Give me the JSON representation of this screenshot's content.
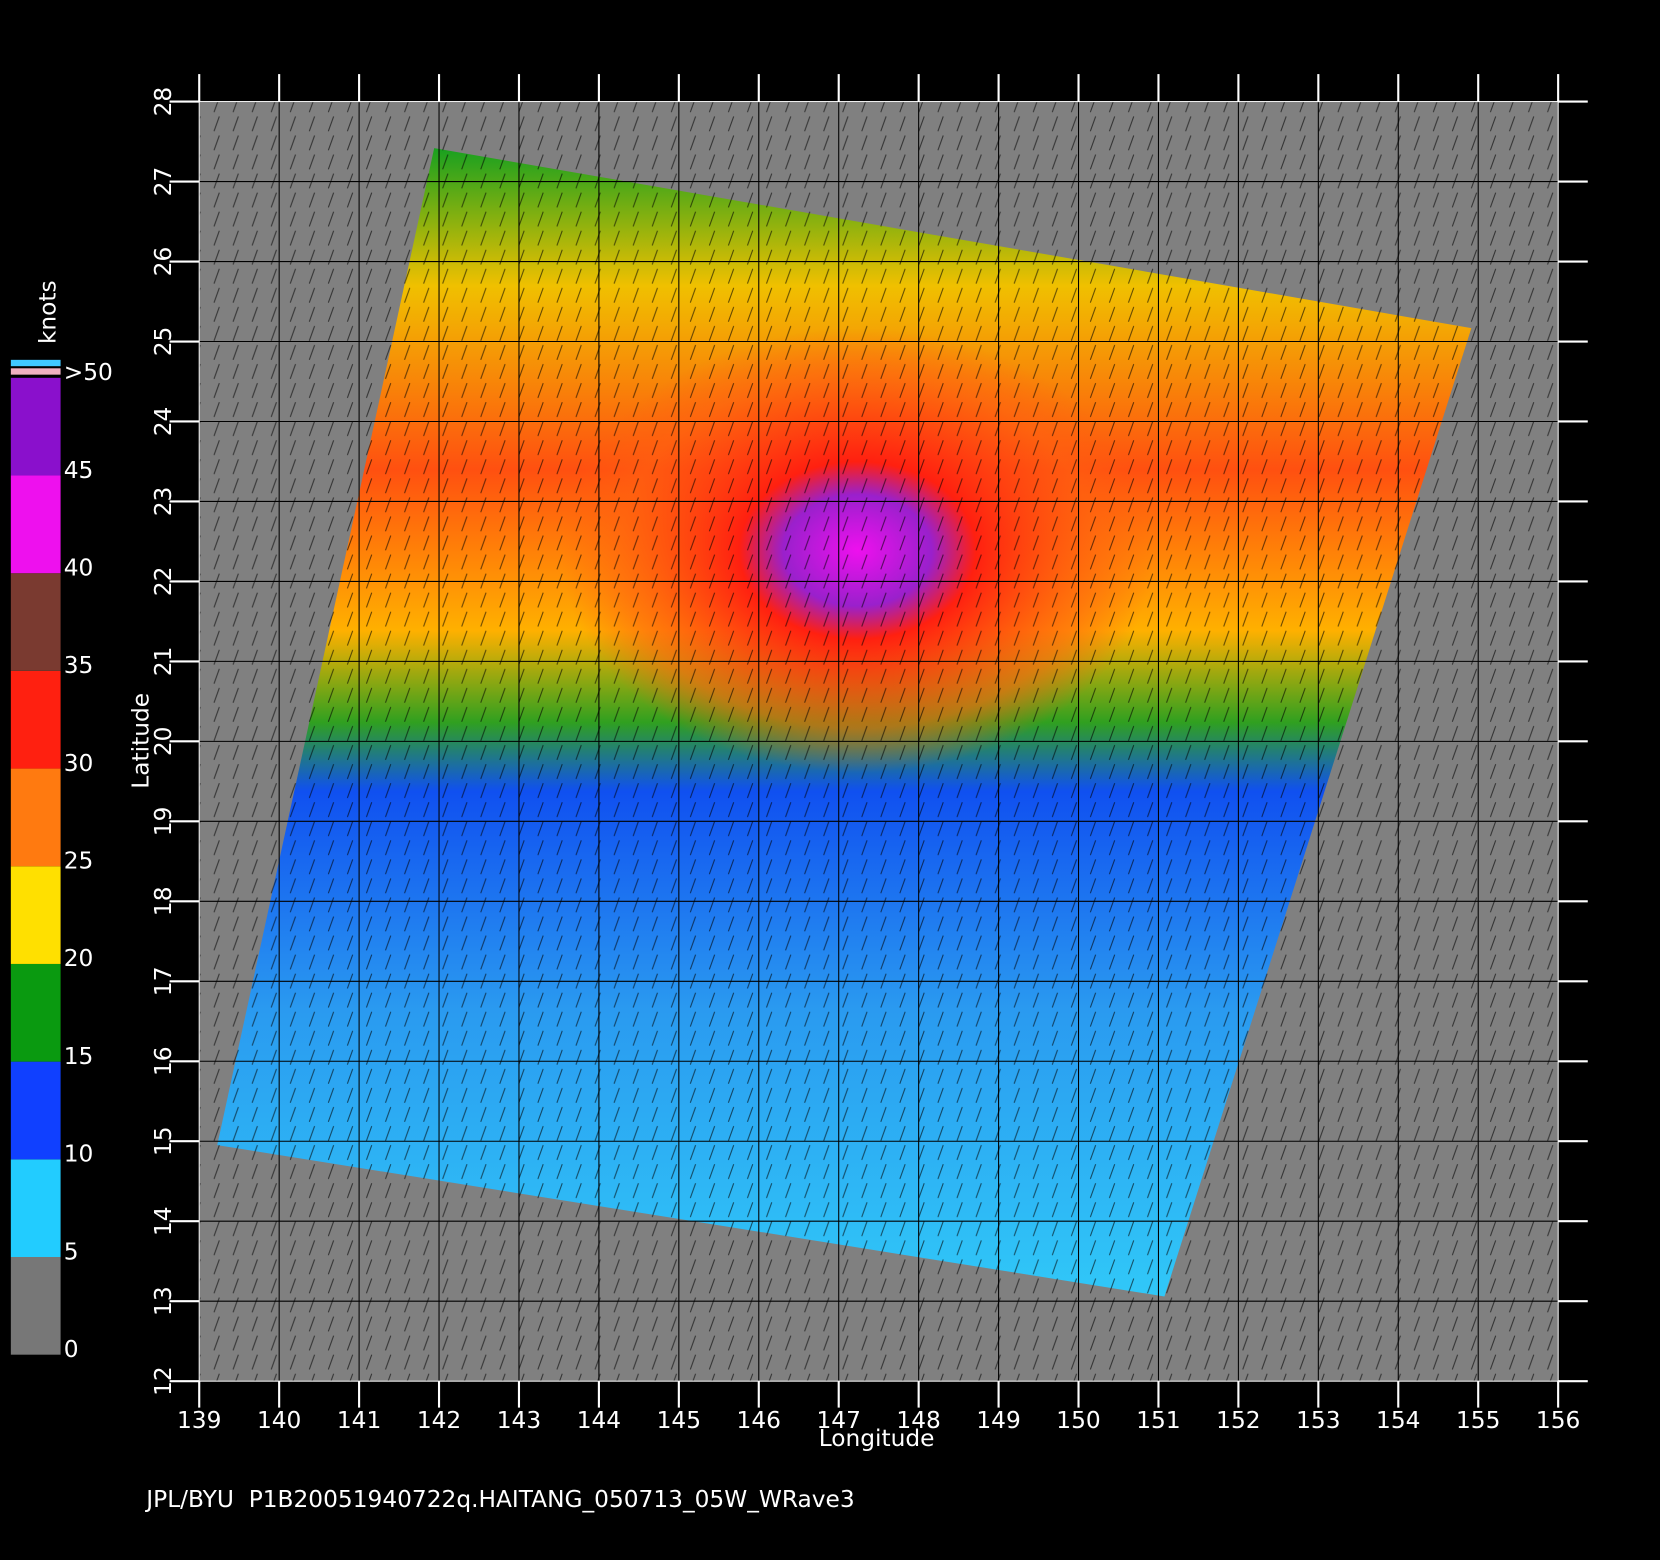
{
  "chart_data": {
    "type": "map",
    "x_label": "Longitude",
    "y_label": "Latitude",
    "xlim": [
      139,
      156
    ],
    "xticks": [
      139,
      140,
      141,
      142,
      143,
      144,
      145,
      146,
      147,
      148,
      149,
      150,
      151,
      152,
      153,
      154,
      155,
      156
    ],
    "ylim": [
      12,
      28
    ],
    "yticks": [
      12,
      13,
      14,
      15,
      16,
      17,
      18,
      19,
      20,
      21,
      22,
      23,
      24,
      25,
      26,
      27,
      28
    ],
    "grid": true,
    "colorbar": {
      "label": "knots",
      "ticks": [
        0,
        5,
        10,
        15,
        20,
        25,
        30,
        35,
        40,
        45,
        {
          "value": 50,
          "label": ">50"
        }
      ],
      "colors": [
        "#777777",
        "#22ccff",
        "#1040ff",
        "#0a9a10",
        "#ffe000",
        "#ff7a10",
        "#ff2010",
        "#7a3a30",
        "#ee10ee",
        "#8a10cc"
      ]
    },
    "footer": "JPL/BYU  P1B20051940722q.HAITANG_050713_05W_WRave3"
  }
}
